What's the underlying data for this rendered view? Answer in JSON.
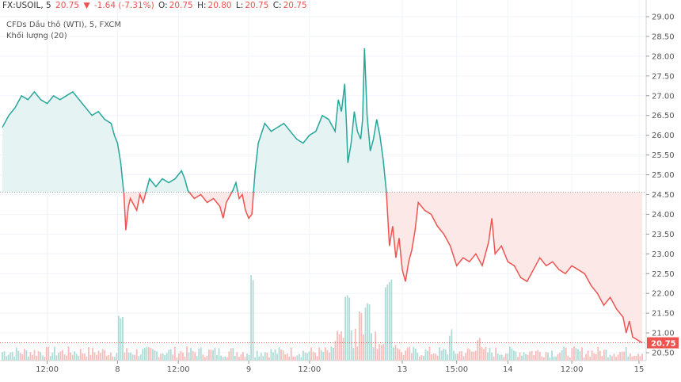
{
  "header": {
    "symbol": "FX:USOIL, 5",
    "last": "20.75",
    "change": "-1.64 (-7.31%)",
    "open_label": "O:",
    "open": "20.75",
    "high_label": "H:",
    "high": "20.80",
    "low_label": "L:",
    "low": "20.75",
    "close_label": "C:",
    "close": "20.75",
    "series_label": "CFDs Dầu thô (WTI), 5, FXCM",
    "volume_label": "Khối lượng (20)"
  },
  "colors": {
    "up": "#26a69a",
    "down": "#ef5350",
    "up_fill": "#e5f4f2",
    "down_fill": "#fde8e8",
    "grid": "#f0f3fa",
    "axis": "#555555"
  },
  "chart_data": {
    "type": "line",
    "baseline": 24.56,
    "last_price": 20.75,
    "ylim": [
      20.3,
      29.1
    ],
    "yticks": [
      "29.00",
      "28.50",
      "28.00",
      "27.50",
      "27.00",
      "26.50",
      "26.00",
      "25.50",
      "25.00",
      "24.50",
      "24.00",
      "23.50",
      "23.00",
      "22.50",
      "22.00",
      "21.50",
      "21.00",
      "20.50"
    ],
    "xticks": [
      {
        "label": "12:00",
        "t": 0.07
      },
      {
        "label": "8",
        "t": 0.18
      },
      {
        "label": "12:00",
        "t": 0.275
      },
      {
        "label": "9",
        "t": 0.385
      },
      {
        "label": "12:00",
        "t": 0.48
      },
      {
        "label": "13",
        "t": 0.625
      },
      {
        "label": "15:00",
        "t": 0.71
      },
      {
        "label": "14",
        "t": 0.79
      },
      {
        "label": "12:00",
        "t": 0.89
      },
      {
        "label": "15",
        "t": 0.995
      }
    ],
    "price": [
      [
        0.0,
        26.2
      ],
      [
        0.01,
        26.5
      ],
      [
        0.02,
        26.7
      ],
      [
        0.03,
        27.0
      ],
      [
        0.04,
        26.9
      ],
      [
        0.05,
        27.1
      ],
      [
        0.06,
        26.9
      ],
      [
        0.07,
        26.8
      ],
      [
        0.08,
        27.0
      ],
      [
        0.09,
        26.9
      ],
      [
        0.1,
        27.0
      ],
      [
        0.11,
        27.1
      ],
      [
        0.12,
        26.9
      ],
      [
        0.13,
        26.7
      ],
      [
        0.14,
        26.5
      ],
      [
        0.15,
        26.6
      ],
      [
        0.16,
        26.4
      ],
      [
        0.17,
        26.3
      ],
      [
        0.175,
        26.0
      ],
      [
        0.18,
        25.8
      ],
      [
        0.185,
        25.3
      ],
      [
        0.19,
        24.5
      ],
      [
        0.193,
        23.6
      ],
      [
        0.197,
        24.2
      ],
      [
        0.2,
        24.4
      ],
      [
        0.21,
        24.1
      ],
      [
        0.215,
        24.5
      ],
      [
        0.22,
        24.3
      ],
      [
        0.225,
        24.6
      ],
      [
        0.23,
        24.9
      ],
      [
        0.24,
        24.7
      ],
      [
        0.25,
        24.9
      ],
      [
        0.26,
        24.8
      ],
      [
        0.27,
        24.9
      ],
      [
        0.28,
        25.1
      ],
      [
        0.285,
        24.9
      ],
      [
        0.29,
        24.6
      ],
      [
        0.3,
        24.4
      ],
      [
        0.31,
        24.5
      ],
      [
        0.32,
        24.3
      ],
      [
        0.33,
        24.4
      ],
      [
        0.34,
        24.2
      ],
      [
        0.345,
        23.9
      ],
      [
        0.35,
        24.3
      ],
      [
        0.36,
        24.6
      ],
      [
        0.365,
        24.8
      ],
      [
        0.37,
        24.4
      ],
      [
        0.375,
        24.5
      ],
      [
        0.38,
        24.1
      ],
      [
        0.385,
        23.9
      ],
      [
        0.39,
        24.0
      ],
      [
        0.395,
        25.1
      ],
      [
        0.4,
        25.8
      ],
      [
        0.41,
        26.3
      ],
      [
        0.42,
        26.1
      ],
      [
        0.43,
        26.2
      ],
      [
        0.44,
        26.3
      ],
      [
        0.45,
        26.1
      ],
      [
        0.46,
        25.9
      ],
      [
        0.47,
        25.8
      ],
      [
        0.48,
        26.0
      ],
      [
        0.49,
        26.1
      ],
      [
        0.5,
        26.5
      ],
      [
        0.51,
        26.4
      ],
      [
        0.52,
        26.1
      ],
      [
        0.525,
        26.9
      ],
      [
        0.53,
        26.6
      ],
      [
        0.535,
        27.3
      ],
      [
        0.538,
        26.2
      ],
      [
        0.54,
        25.3
      ],
      [
        0.545,
        25.8
      ],
      [
        0.55,
        26.6
      ],
      [
        0.555,
        26.1
      ],
      [
        0.56,
        25.9
      ],
      [
        0.563,
        26.4
      ],
      [
        0.566,
        28.2
      ],
      [
        0.57,
        26.5
      ],
      [
        0.575,
        25.6
      ],
      [
        0.58,
        25.9
      ],
      [
        0.585,
        26.4
      ],
      [
        0.59,
        26.0
      ],
      [
        0.595,
        25.4
      ],
      [
        0.6,
        24.6
      ],
      [
        0.605,
        23.2
      ],
      [
        0.61,
        23.7
      ],
      [
        0.615,
        22.9
      ],
      [
        0.62,
        23.4
      ],
      [
        0.625,
        22.6
      ],
      [
        0.63,
        22.3
      ],
      [
        0.635,
        22.8
      ],
      [
        0.64,
        23.1
      ],
      [
        0.645,
        23.6
      ],
      [
        0.65,
        24.3
      ],
      [
        0.66,
        24.1
      ],
      [
        0.67,
        24.0
      ],
      [
        0.68,
        23.7
      ],
      [
        0.69,
        23.5
      ],
      [
        0.7,
        23.2
      ],
      [
        0.71,
        22.7
      ],
      [
        0.72,
        22.9
      ],
      [
        0.73,
        22.8
      ],
      [
        0.74,
        23.0
      ],
      [
        0.75,
        22.7
      ],
      [
        0.76,
        23.3
      ],
      [
        0.765,
        23.9
      ],
      [
        0.77,
        23.0
      ],
      [
        0.78,
        23.2
      ],
      [
        0.79,
        22.8
      ],
      [
        0.8,
        22.7
      ],
      [
        0.81,
        22.4
      ],
      [
        0.82,
        22.3
      ],
      [
        0.83,
        22.6
      ],
      [
        0.84,
        22.9
      ],
      [
        0.85,
        22.7
      ],
      [
        0.86,
        22.8
      ],
      [
        0.87,
        22.6
      ],
      [
        0.88,
        22.5
      ],
      [
        0.89,
        22.7
      ],
      [
        0.9,
        22.6
      ],
      [
        0.91,
        22.5
      ],
      [
        0.92,
        22.2
      ],
      [
        0.93,
        22.0
      ],
      [
        0.94,
        21.7
      ],
      [
        0.95,
        21.9
      ],
      [
        0.96,
        21.6
      ],
      [
        0.97,
        21.4
      ],
      [
        0.975,
        21.0
      ],
      [
        0.98,
        21.3
      ],
      [
        0.985,
        20.9
      ],
      [
        0.99,
        20.85
      ],
      [
        1.0,
        20.75
      ]
    ]
  }
}
